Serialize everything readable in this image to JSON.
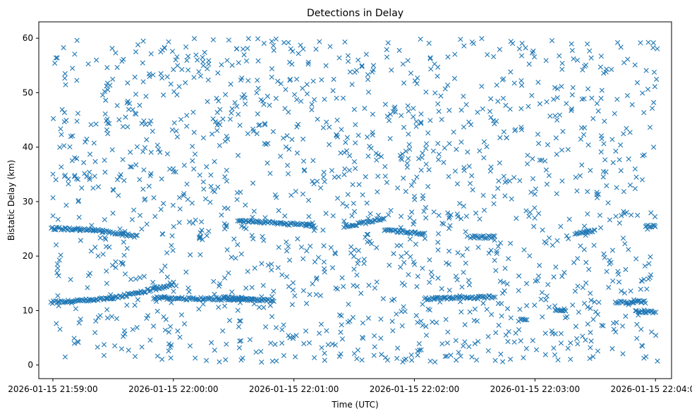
{
  "chart_data": {
    "type": "scatter",
    "title": "Detections in Delay",
    "xlabel": "Time (UTC)",
    "ylabel": "Bistatic Delay (km)",
    "x_unit": "time (UTC)",
    "xlim": [
      "2026-01-15 21:58:53",
      "2026-01-15 22:04:08"
    ],
    "ylim": [
      -2.5,
      63
    ],
    "x_ticks": [
      {
        "t": "2026-01-15 21:59:00",
        "label": "2026-01-15 21:59:00"
      },
      {
        "t": "2026-01-15 22:00:00",
        "label": "2026-01-15 22:00:00"
      },
      {
        "t": "2026-01-15 22:01:00",
        "label": "2026-01-15 22:01:00"
      },
      {
        "t": "2026-01-15 22:02:00",
        "label": "2026-01-15 22:02:00"
      },
      {
        "t": "2026-01-15 22:03:00",
        "label": "2026-01-15 22:03:00"
      },
      {
        "t": "2026-01-15 22:04:00",
        "label": "2026-01-15 22:04:00"
      }
    ],
    "y_ticks": [
      0,
      10,
      20,
      30,
      40,
      50,
      60
    ],
    "grid": false,
    "marker": "x",
    "color": "#1f77b4",
    "series": [
      {
        "tracks": [
          {
            "points": [
              [
                "2026-01-15 21:58:59",
                11.5
              ],
              [
                "2026-01-15 21:59:30",
                12.3
              ],
              [
                "2026-01-15 21:59:55",
                14.3
              ],
              [
                "2026-01-15 22:00:00",
                15.0
              ]
            ]
          },
          {
            "points": [
              [
                "2026-01-15 21:59:50",
                12.3
              ],
              [
                "2026-01-15 22:00:30",
                12.1
              ],
              [
                "2026-01-15 22:00:40",
                11.9
              ]
            ]
          },
          {
            "points": [
              [
                "2026-01-15 22:00:25",
                12.4
              ],
              [
                "2026-01-15 22:00:50",
                11.8
              ]
            ]
          },
          {
            "points": [
              [
                "2026-01-15 21:58:59",
                25.1
              ],
              [
                "2026-01-15 21:59:20",
                24.8
              ],
              [
                "2026-01-15 21:59:42",
                23.6
              ]
            ]
          },
          {
            "points": [
              [
                "2026-01-15 22:00:32",
                26.5
              ],
              [
                "2026-01-15 22:01:10",
                25.6
              ]
            ]
          },
          {
            "points": [
              [
                "2026-01-15 22:01:25",
                25.4
              ],
              [
                "2026-01-15 22:01:45",
                26.9
              ]
            ]
          },
          {
            "points": [
              [
                "2026-01-15 22:01:45",
                24.8
              ],
              [
                "2026-01-15 22:02:05",
                24.0
              ]
            ]
          },
          {
            "points": [
              [
                "2026-01-15 22:02:05",
                12.2
              ],
              [
                "2026-01-15 22:02:40",
                12.5
              ]
            ]
          },
          {
            "points": [
              [
                "2026-01-15 22:02:28",
                23.5
              ],
              [
                "2026-01-15 22:02:40",
                23.5
              ]
            ]
          },
          {
            "points": [
              [
                "2026-01-15 22:02:52",
                8.2
              ],
              [
                "2026-01-15 22:02:56",
                8.4
              ]
            ]
          },
          {
            "points": [
              [
                "2026-01-15 22:03:10",
                9.9
              ],
              [
                "2026-01-15 22:03:15",
                10.1
              ]
            ]
          },
          {
            "points": [
              [
                "2026-01-15 22:03:20",
                24.1
              ],
              [
                "2026-01-15 22:03:30",
                24.6
              ]
            ]
          },
          {
            "points": [
              [
                "2026-01-15 22:03:40",
                11.5
              ],
              [
                "2026-01-15 22:03:55",
                11.6
              ]
            ]
          },
          {
            "points": [
              [
                "2026-01-15 22:03:50",
                9.8
              ],
              [
                "2026-01-15 22:04:00",
                9.7
              ]
            ]
          },
          {
            "points": [
              [
                "2026-01-15 22:03:55",
                25.4
              ],
              [
                "2026-01-15 22:04:00",
                25.6
              ]
            ]
          }
        ],
        "noise": {
          "count": 1500,
          "y_range": [
            0.5,
            60
          ]
        }
      }
    ]
  }
}
